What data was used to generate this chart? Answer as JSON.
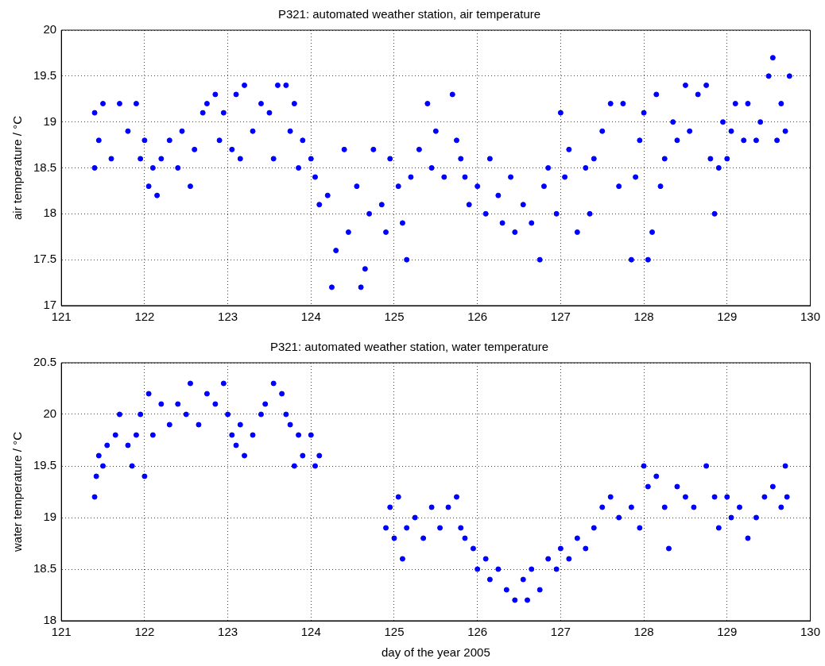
{
  "chart_data": [
    {
      "type": "scatter",
      "title": "P321: automated weather station, air temperature",
      "ylabel": "air temperature / °C",
      "color": "#0000ff",
      "marker": "circle",
      "grid": true,
      "legend": false,
      "xlim": [
        121,
        130
      ],
      "xticks": [
        121,
        122,
        123,
        124,
        125,
        126,
        127,
        128,
        129,
        130
      ],
      "ylim": [
        17,
        20
      ],
      "yticks": [
        17,
        17.5,
        18,
        18.5,
        19,
        19.5,
        20
      ],
      "x": [
        121.4,
        121.4,
        121.45,
        121.5,
        121.6,
        121.7,
        121.8,
        121.9,
        121.95,
        122.0,
        122.05,
        122.1,
        122.15,
        122.2,
        122.3,
        122.4,
        122.45,
        122.55,
        122.6,
        122.7,
        122.75,
        122.85,
        122.9,
        122.95,
        123.05,
        123.1,
        123.15,
        123.2,
        123.3,
        123.4,
        123.5,
        123.55,
        123.6,
        123.7,
        123.75,
        123.8,
        123.85,
        123.9,
        124.0,
        124.05,
        124.1,
        124.2,
        124.25,
        124.3,
        124.4,
        124.45,
        124.55,
        124.6,
        124.65,
        124.7,
        124.75,
        124.85,
        124.9,
        124.95,
        125.05,
        125.1,
        125.15,
        125.2,
        125.3,
        125.4,
        125.45,
        125.5,
        125.6,
        125.7,
        125.75,
        125.8,
        125.85,
        125.9,
        126.0,
        126.1,
        126.15,
        126.25,
        126.3,
        126.4,
        126.45,
        126.55,
        126.65,
        126.75,
        126.8,
        126.85,
        126.95,
        127.0,
        127.05,
        127.1,
        127.2,
        127.3,
        127.35,
        127.4,
        127.5,
        127.6,
        127.7,
        127.75,
        127.85,
        127.9,
        127.95,
        128.0,
        128.05,
        128.1,
        128.15,
        128.2,
        128.25,
        128.35,
        128.4,
        128.5,
        128.55,
        128.65,
        128.75,
        128.8,
        128.85,
        128.9,
        128.95,
        129.0,
        129.05,
        129.1,
        129.2,
        129.25,
        129.35,
        129.4,
        129.5,
        129.55,
        129.6,
        129.65,
        129.7,
        129.75
      ],
      "values": [
        18.5,
        19.1,
        18.8,
        19.2,
        18.6,
        19.2,
        18.9,
        19.2,
        18.6,
        18.8,
        18.3,
        18.5,
        18.2,
        18.6,
        18.8,
        18.5,
        18.9,
        18.3,
        18.7,
        19.1,
        19.2,
        19.3,
        18.8,
        19.1,
        18.7,
        19.3,
        18.6,
        19.4,
        18.9,
        19.2,
        19.1,
        18.6,
        19.4,
        19.4,
        18.9,
        19.2,
        18.5,
        18.8,
        18.6,
        18.4,
        18.1,
        18.2,
        17.2,
        17.6,
        18.7,
        17.8,
        18.3,
        17.2,
        17.4,
        18.0,
        18.7,
        18.1,
        17.8,
        18.6,
        18.3,
        17.9,
        17.5,
        18.4,
        18.7,
        19.2,
        18.5,
        18.9,
        18.4,
        19.3,
        18.8,
        18.6,
        18.4,
        18.1,
        18.3,
        18.0,
        18.6,
        18.2,
        17.9,
        18.4,
        17.8,
        18.1,
        17.9,
        17.5,
        18.3,
        18.5,
        18.0,
        19.1,
        18.4,
        18.7,
        17.8,
        18.5,
        18.0,
        18.6,
        18.9,
        19.2,
        18.3,
        19.2,
        17.5,
        18.4,
        18.8,
        19.1,
        17.5,
        17.8,
        19.3,
        18.3,
        18.6,
        19.0,
        18.8,
        19.4,
        18.9,
        19.3,
        19.4,
        18.6,
        18.0,
        18.5,
        19.0,
        18.6,
        18.9,
        19.2,
        18.8,
        19.2,
        18.8,
        19.0,
        19.5,
        19.7,
        18.8,
        19.2,
        18.9,
        19.5
      ]
    },
    {
      "type": "scatter",
      "title": "P321: automated weather station, water temperature",
      "xlabel": "day of the year 2005",
      "ylabel": "water temperature / °C",
      "color": "#0000ff",
      "marker": "circle",
      "grid": true,
      "legend": false,
      "xlim": [
        121,
        130
      ],
      "xticks": [
        121,
        122,
        123,
        124,
        125,
        126,
        127,
        128,
        129,
        130
      ],
      "ylim": [
        18,
        20.5
      ],
      "yticks": [
        18,
        18.5,
        19,
        19.5,
        20,
        20.5
      ],
      "x": [
        121.4,
        121.42,
        121.45,
        121.5,
        121.55,
        121.65,
        121.7,
        121.8,
        121.85,
        121.9,
        121.95,
        122.0,
        122.05,
        122.1,
        122.2,
        122.3,
        122.4,
        122.5,
        122.55,
        122.65,
        122.75,
        122.85,
        122.95,
        123.0,
        123.05,
        123.1,
        123.15,
        123.2,
        123.3,
        123.4,
        123.45,
        123.55,
        123.65,
        123.7,
        123.75,
        123.8,
        123.85,
        123.9,
        124.0,
        124.05,
        124.1,
        124.9,
        124.95,
        125.0,
        125.05,
        125.1,
        125.15,
        125.25,
        125.35,
        125.45,
        125.55,
        125.65,
        125.75,
        125.8,
        125.85,
        125.95,
        126.0,
        126.1,
        126.15,
        126.25,
        126.35,
        126.45,
        126.55,
        126.6,
        126.65,
        126.75,
        126.85,
        126.95,
        127.0,
        127.1,
        127.2,
        127.3,
        127.4,
        127.5,
        127.6,
        127.7,
        127.85,
        127.95,
        128.0,
        128.05,
        128.15,
        128.25,
        128.3,
        128.4,
        128.5,
        128.6,
        128.75,
        128.85,
        128.9,
        129.0,
        129.05,
        129.15,
        129.25,
        129.35,
        129.45,
        129.55,
        129.65,
        129.7,
        129.72
      ],
      "values": [
        19.2,
        19.4,
        19.6,
        19.5,
        19.7,
        19.8,
        20.0,
        19.7,
        19.5,
        19.8,
        20.0,
        19.4,
        20.2,
        19.8,
        20.1,
        19.9,
        20.1,
        20.0,
        20.3,
        19.9,
        20.2,
        20.1,
        20.3,
        20.0,
        19.8,
        19.7,
        19.9,
        19.6,
        19.8,
        20.0,
        20.1,
        20.3,
        20.2,
        20.0,
        19.9,
        19.5,
        19.8,
        19.6,
        19.8,
        19.5,
        19.6,
        18.9,
        19.1,
        18.8,
        19.2,
        18.6,
        18.9,
        19.0,
        18.8,
        19.1,
        18.9,
        19.1,
        19.2,
        18.9,
        18.8,
        18.7,
        18.5,
        18.6,
        18.4,
        18.5,
        18.3,
        18.2,
        18.4,
        18.2,
        18.5,
        18.3,
        18.6,
        18.5,
        18.7,
        18.6,
        18.8,
        18.7,
        18.9,
        19.1,
        19.2,
        19.0,
        19.1,
        18.9,
        19.5,
        19.3,
        19.4,
        19.1,
        18.7,
        19.3,
        19.2,
        19.1,
        19.5,
        19.2,
        18.9,
        19.2,
        19.0,
        19.1,
        18.8,
        19.0,
        19.2,
        19.3,
        19.1,
        19.5,
        19.2
      ]
    }
  ]
}
